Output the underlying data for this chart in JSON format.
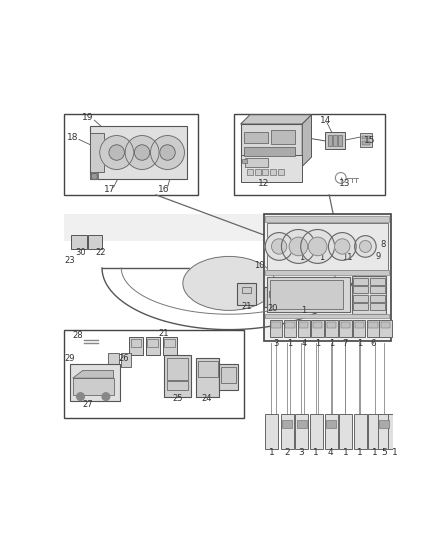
{
  "bg_color": "#ffffff",
  "lc": "#555555",
  "fig_width": 4.38,
  "fig_height": 5.33,
  "dpi": 100
}
